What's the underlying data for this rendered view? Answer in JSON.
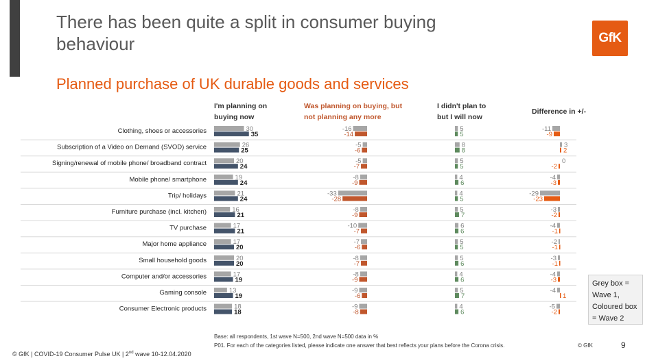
{
  "slide": {
    "title": "There has been quite a split in consumer buying behaviour",
    "logo_text": "GfK",
    "subtitle": "Planned purchase of UK durable goods and services",
    "legend_note": [
      "Grey box =",
      "Wave 1,",
      "Coloured box",
      "= Wave 2"
    ],
    "base_note": "Base: all respondents, 1st wave N=500, 2nd wave N=500 data in %",
    "question_note": "P01. For each of the categories listed, please indicate one answer that best reflects your plans before the Corona crisis.",
    "footer_prefix": "© GfK | COVID-19 Consumer Pulse UK | 2",
    "footer_sup": "nd",
    "footer_suffix": " wave 10-12.04.2020",
    "copyright": "© GfK",
    "page_number": "9"
  },
  "colors": {
    "wave1": "#a6a6a6",
    "buying_now": "#44546a",
    "not_planning": "#c0572d",
    "didnt_plan": "#5e8a5e",
    "difference": "#e55b13",
    "accent": "#e55b13",
    "separator": "#d9d9d9"
  },
  "chart_data": {
    "type": "bar",
    "title": "Planned purchase of UK durable goods and services",
    "series_wave_labels": [
      "Wave 1",
      "Wave 2"
    ],
    "panels": [
      {
        "key": "buying_now",
        "header": [
          "I'm planning on",
          "buying now"
        ]
      },
      {
        "key": "not_planning",
        "header": [
          "Was planning on buying, but",
          "not planning any more"
        ]
      },
      {
        "key": "didnt_plan",
        "header": [
          "I didn't plan to",
          "but I will now"
        ]
      },
      {
        "key": "difference",
        "header": [
          "Difference in +/-"
        ]
      }
    ],
    "categories": [
      "Clothing, shoes or accessories",
      "Subscription of a Video on Demand (SVOD) service",
      "Signing/renewal of mobile phone/ broadband contract",
      "Mobile phone/ smartphone",
      "Trip/ holidays",
      "Furniture purchase (incl. kitchen)",
      "TV purchase",
      "Major home appliance",
      "Small household goods",
      "Computer and/or accessories",
      "Gaming console",
      "Consumer Electronic products"
    ],
    "buying_now": {
      "wave1": [
        30,
        26,
        20,
        19,
        21,
        16,
        17,
        17,
        20,
        17,
        13,
        18
      ],
      "wave2": [
        35,
        25,
        24,
        24,
        24,
        21,
        21,
        20,
        20,
        19,
        19,
        18
      ]
    },
    "not_planning": {
      "wave1": [
        -16,
        -5,
        -5,
        -8,
        -33,
        -8,
        -10,
        -7,
        -8,
        -8,
        -9,
        -9
      ],
      "wave2": [
        -14,
        -6,
        -7,
        -9,
        -28,
        -9,
        -7,
        -6,
        -7,
        -9,
        -6,
        -8
      ]
    },
    "didnt_plan": {
      "wave1": [
        5,
        8,
        5,
        4,
        4,
        5,
        6,
        5,
        5,
        4,
        5,
        4
      ],
      "wave2": [
        5,
        8,
        5,
        6,
        5,
        7,
        6,
        5,
        6,
        6,
        7,
        6
      ]
    },
    "difference": {
      "wave1": [
        -11,
        3,
        0,
        -4,
        -29,
        -3,
        -4,
        -2,
        -3,
        -4,
        -4,
        -5
      ],
      "wave2": [
        -9,
        2,
        -2,
        -3,
        -23,
        -2,
        -1,
        -1,
        -1,
        -3,
        1,
        -2
      ]
    }
  }
}
